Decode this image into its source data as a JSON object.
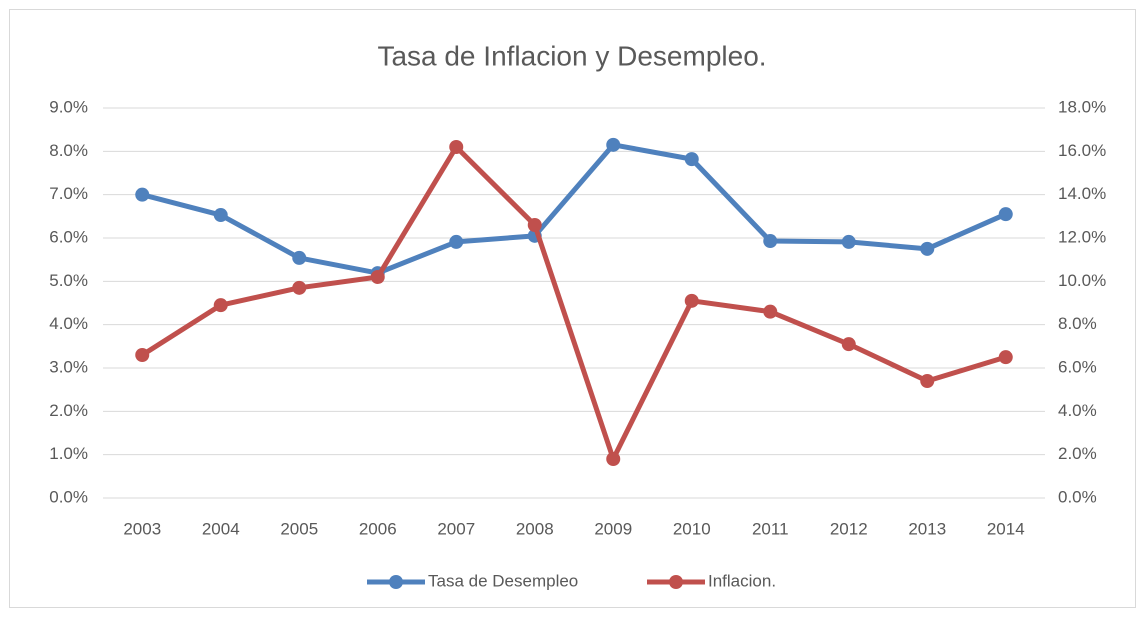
{
  "chart_data": {
    "type": "line",
    "title": "Tasa de Inflacion y Desempleo.",
    "categories": [
      "2003",
      "2004",
      "2005",
      "2006",
      "2007",
      "2008",
      "2009",
      "2010",
      "2011",
      "2012",
      "2013",
      "2014"
    ],
    "series": [
      {
        "name": "Tasa de Desempleo",
        "color": "#4f81bd",
        "values": [
          7.0,
          6.53,
          5.54,
          5.19,
          5.91,
          6.05,
          8.15,
          7.82,
          5.93,
          5.91,
          5.75,
          6.55
        ]
      },
      {
        "name": "Inflacion.",
        "color": "#c0504d",
        "axis": "y2",
        "values": [
          6.6,
          8.9,
          9.7,
          10.2,
          16.2,
          12.6,
          1.8,
          9.1,
          8.6,
          7.1,
          5.4,
          6.5
        ]
      }
    ],
    "ylim": [
      0,
      9
    ],
    "yticks": [
      {
        "value": 0,
        "label": "0.0%"
      },
      {
        "value": 1,
        "label": "1.0%"
      },
      {
        "value": 2,
        "label": "2.0%"
      },
      {
        "value": 3,
        "label": "3.0%"
      },
      {
        "value": 4,
        "label": "4.0%"
      },
      {
        "value": 5,
        "label": "5.0%"
      },
      {
        "value": 6,
        "label": "6.0%"
      },
      {
        "value": 7,
        "label": "7.0%"
      },
      {
        "value": 8,
        "label": "8.0%"
      },
      {
        "value": 9,
        "label": "9.0%"
      }
    ],
    "y2lim": [
      0,
      18
    ],
    "y2ticks": [
      {
        "value": 0,
        "label": "0.0%"
      },
      {
        "value": 2,
        "label": "2.0%"
      },
      {
        "value": 4,
        "label": "4.0%"
      },
      {
        "value": 6,
        "label": "6.0%"
      },
      {
        "value": 8,
        "label": "8.0%"
      },
      {
        "value": 10,
        "label": "10.0%"
      },
      {
        "value": 12,
        "label": "12.0%"
      },
      {
        "value": 14,
        "label": "14.0%"
      },
      {
        "value": 16,
        "label": "16.0%"
      },
      {
        "value": 18,
        "label": "18.0%"
      }
    ],
    "grid": true,
    "legend": "bottom"
  }
}
